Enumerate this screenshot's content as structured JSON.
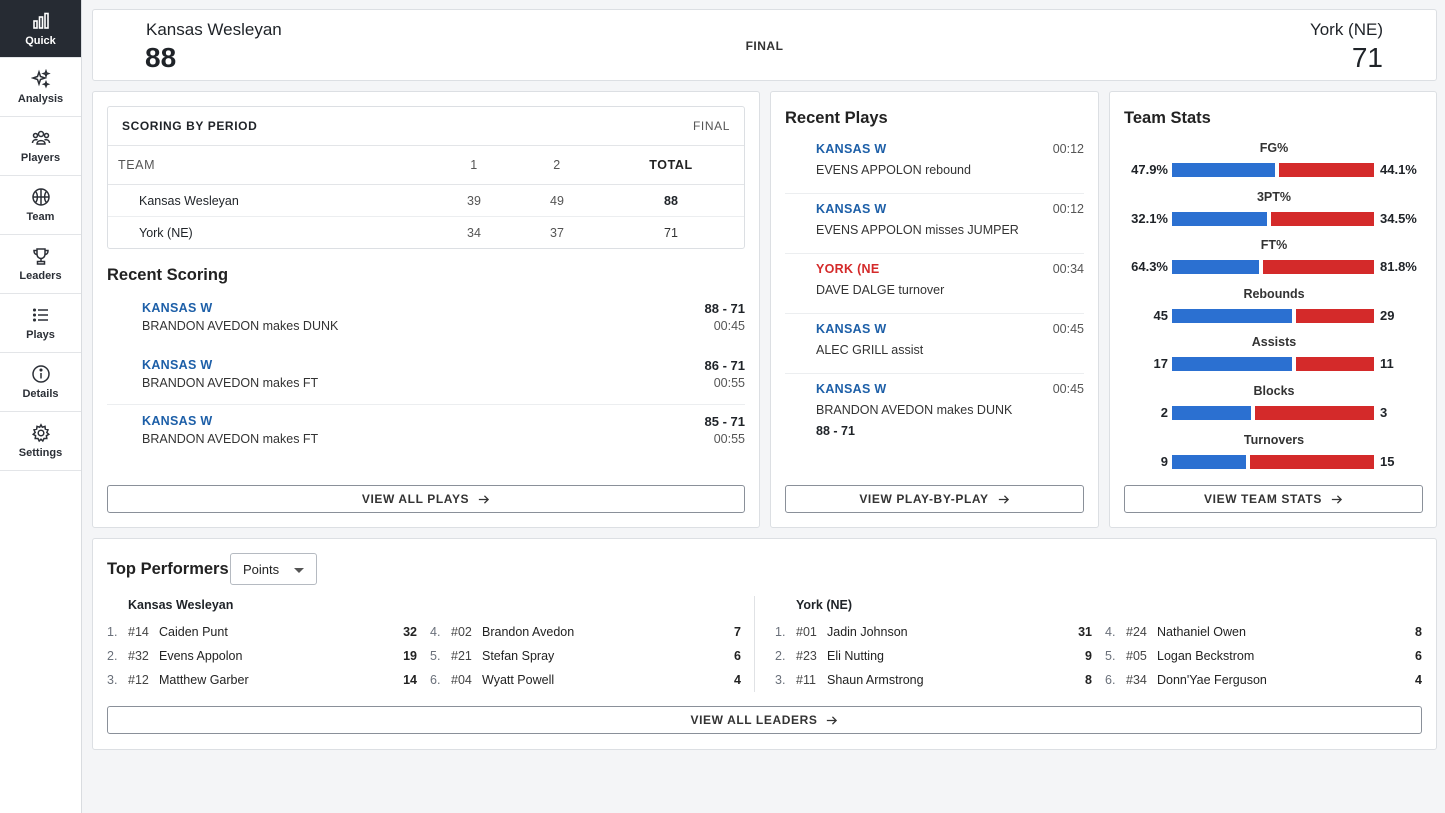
{
  "nav": [
    {
      "label": "Quick",
      "icon": "chart-bars-icon",
      "active": true
    },
    {
      "label": "Analysis",
      "icon": "sparkles-icon"
    },
    {
      "label": "Players",
      "icon": "people-icon"
    },
    {
      "label": "Team",
      "icon": "basketball-icon"
    },
    {
      "label": "Leaders",
      "icon": "trophy-icon"
    },
    {
      "label": "Plays",
      "icon": "list-icon"
    },
    {
      "label": "Details",
      "icon": "info-icon"
    },
    {
      "label": "Settings",
      "icon": "gear-icon"
    }
  ],
  "game": {
    "home_name": "Kansas Wesleyan",
    "home_score": "88",
    "status": "FINAL",
    "away_name": "York (NE)",
    "away_score": "71"
  },
  "scoring_by_period": {
    "title": "SCORING BY PERIOD",
    "status": "FINAL",
    "headers": {
      "team": "TEAM",
      "p1": "1",
      "p2": "2",
      "total": "TOTAL"
    },
    "rows": [
      {
        "team": "Kansas Wesleyan",
        "p1": "39",
        "p2": "49",
        "total": "88"
      },
      {
        "team": "York (NE)",
        "p1": "34",
        "p2": "37",
        "total": "71"
      }
    ]
  },
  "recent_scoring": {
    "title": "Recent Scoring",
    "items": [
      {
        "team": "KANSAS W",
        "desc": "BRANDON AVEDON makes DUNK",
        "score": "88 - 71",
        "time": "00:45"
      },
      {
        "team": "KANSAS W",
        "desc": "BRANDON AVEDON makes FT",
        "score": "86 - 71",
        "time": "00:55"
      },
      {
        "team": "KANSAS W",
        "desc": "BRANDON AVEDON makes FT",
        "score": "85 - 71",
        "time": "00:55"
      }
    ],
    "button": "VIEW ALL PLAYS"
  },
  "recent_plays": {
    "title": "Recent Plays",
    "items": [
      {
        "team": "KANSAS W",
        "desc": "EVENS APPOLON rebound",
        "time": "00:12",
        "color": "#1d5fa8"
      },
      {
        "team": "KANSAS W",
        "desc": "EVENS APPOLON misses JUMPER",
        "time": "00:12",
        "color": "#1d5fa8"
      },
      {
        "team": "YORK (NE",
        "desc": "DAVE DALGE turnover",
        "time": "00:34",
        "color": "#d42a2a"
      },
      {
        "team": "KANSAS W",
        "desc": "ALEC GRILL assist",
        "time": "00:45",
        "color": "#1d5fa8"
      },
      {
        "team": "KANSAS W",
        "desc": "BRANDON AVEDON makes DUNK",
        "time": "00:45",
        "color": "#1d5fa8",
        "extra": "88 - 71"
      }
    ],
    "button": "VIEW PLAY-BY-PLAY"
  },
  "team_stats": {
    "title": "Team Stats",
    "colors": {
      "home": "#2b70d1",
      "away": "#d42a2a"
    },
    "stats": [
      {
        "label": "FG%",
        "home": "47.9%",
        "away": "44.1%",
        "home_val": 47.9,
        "away_val": 44.1
      },
      {
        "label": "3PT%",
        "home": "32.1%",
        "away": "34.5%",
        "home_val": 32.1,
        "away_val": 34.5
      },
      {
        "label": "FT%",
        "home": "64.3%",
        "away": "81.8%",
        "home_val": 64.3,
        "away_val": 81.8
      },
      {
        "label": "Rebounds",
        "home": "45",
        "away": "29",
        "home_val": 45,
        "away_val": 29
      },
      {
        "label": "Assists",
        "home": "17",
        "away": "11",
        "home_val": 17,
        "away_val": 11
      },
      {
        "label": "Blocks",
        "home": "2",
        "away": "3",
        "home_val": 2,
        "away_val": 3
      },
      {
        "label": "Turnovers",
        "home": "9",
        "away": "15",
        "home_val": 9,
        "away_val": 15
      }
    ],
    "button": "VIEW TEAM STATS"
  },
  "top_performers": {
    "title": "Top Performers",
    "select_value": "Points",
    "home_team": "Kansas Wesleyan",
    "away_team": "York (NE)",
    "home": [
      {
        "rank": "1.",
        "num": "#14",
        "name": "Caiden Punt",
        "pts": "32"
      },
      {
        "rank": "2.",
        "num": "#32",
        "name": "Evens Appolon",
        "pts": "19"
      },
      {
        "rank": "3.",
        "num": "#12",
        "name": "Matthew Garber",
        "pts": "14"
      },
      {
        "rank": "4.",
        "num": "#02",
        "name": "Brandon Avedon",
        "pts": "7"
      },
      {
        "rank": "5.",
        "num": "#21",
        "name": "Stefan Spray",
        "pts": "6"
      },
      {
        "rank": "6.",
        "num": "#04",
        "name": "Wyatt Powell",
        "pts": "4"
      }
    ],
    "away": [
      {
        "rank": "1.",
        "num": "#01",
        "name": "Jadin Johnson",
        "pts": "31"
      },
      {
        "rank": "2.",
        "num": "#23",
        "name": "Eli Nutting",
        "pts": "9"
      },
      {
        "rank": "3.",
        "num": "#11",
        "name": "Shaun Armstrong",
        "pts": "8"
      },
      {
        "rank": "4.",
        "num": "#24",
        "name": "Nathaniel Owen",
        "pts": "8"
      },
      {
        "rank": "5.",
        "num": "#05",
        "name": "Logan Beckstrom",
        "pts": "6"
      },
      {
        "rank": "6.",
        "num": "#34",
        "name": "Donn'Yae Ferguson",
        "pts": "4"
      }
    ],
    "button": "VIEW ALL LEADERS"
  }
}
